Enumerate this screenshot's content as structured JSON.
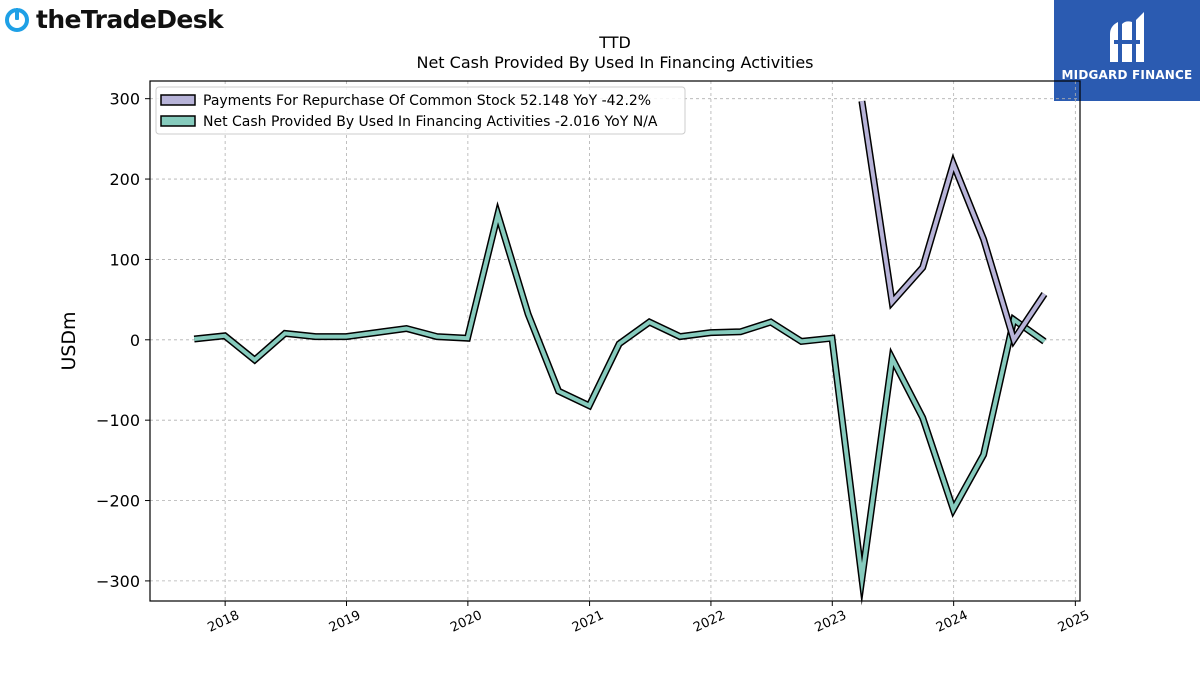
{
  "branding": {
    "left_logo_text": "theTradeDesk",
    "right_logo_text": "MIDGARD FINANCE",
    "right_bg_color": "#2b5bb1",
    "left_icon_color": "#1ea0e6"
  },
  "chart_data": {
    "type": "line",
    "title": "TTD",
    "subtitle": "Net Cash Provided By Used In Financing Activities",
    "ylabel": "USDm",
    "xlabel": "",
    "xlim": [
      "2017-05-20",
      "2025-01-15"
    ],
    "ylim": [
      -325,
      322
    ],
    "yticks": [
      300,
      200,
      100,
      0,
      -100,
      -200,
      -300
    ],
    "ytick_labels": [
      "300",
      "200",
      "100",
      "0",
      "−100",
      "−200",
      "−300"
    ],
    "xticks": [
      "2018-01-01",
      "2019-01-01",
      "2020-01-01",
      "2021-01-01",
      "2022-01-01",
      "2023-01-01",
      "2024-01-01",
      "2025-01-01"
    ],
    "xtick_labels": [
      "2018",
      "2019",
      "2020",
      "2021",
      "2022",
      "2023",
      "2024",
      "2025"
    ],
    "grid": true,
    "legend_position": "top-left",
    "series": [
      {
        "name": "Payments For Repurchase Of Common Stock",
        "legend_label": "Payments For Repurchase Of Common Stock  52.148 YoY -42.2%",
        "color": "#b7b3d8",
        "x": [
          "2023-03-31",
          "2023-06-30",
          "2023-09-30",
          "2023-12-31",
          "2024-03-31",
          "2024-06-30",
          "2024-09-30"
        ],
        "values": [
          297,
          47,
          90,
          219,
          125,
          0,
          57
        ]
      },
      {
        "name": "Net Cash Provided By Used In Financing Activities",
        "legend_label": "Net Cash Provided By Used In Financing Activities  -2.016 YoY N/A",
        "color": "#86cbbd",
        "x": [
          "2017-09-30",
          "2017-12-31",
          "2018-03-31",
          "2018-06-30",
          "2018-09-30",
          "2018-12-31",
          "2019-03-31",
          "2019-06-30",
          "2019-09-30",
          "2019-12-31",
          "2020-03-31",
          "2020-06-30",
          "2020-09-30",
          "2020-12-31",
          "2021-03-31",
          "2021-06-30",
          "2021-09-30",
          "2021-12-31",
          "2022-03-31",
          "2022-06-30",
          "2022-09-30",
          "2022-12-31",
          "2023-03-31",
          "2023-06-30",
          "2023-09-30",
          "2023-12-31",
          "2024-03-31",
          "2024-06-30",
          "2024-09-30"
        ],
        "values": [
          1,
          5,
          -25,
          8,
          4,
          4,
          9,
          14,
          4,
          2,
          156,
          32,
          -64,
          -82,
          -5,
          22,
          4,
          9,
          10,
          22,
          -2,
          2,
          -297,
          -23,
          -97,
          -211,
          -143,
          25,
          -2
        ]
      }
    ]
  }
}
